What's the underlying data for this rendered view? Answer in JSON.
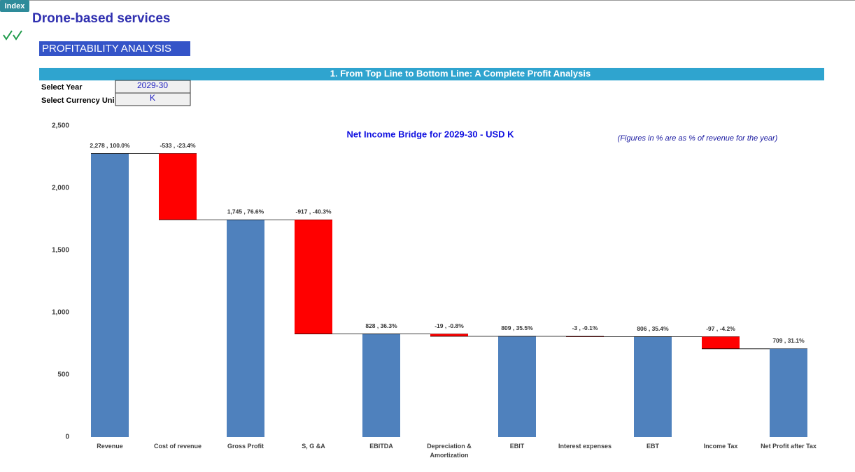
{
  "header": {
    "index_button": "Index",
    "title": "Drone-based services",
    "section": "PROFITABILITY ANALYSIS",
    "banner": "1. From Top Line to Bottom Line: A Complete Profit Analysis"
  },
  "inputs": {
    "rows": [
      {
        "label": "Select Year",
        "value": "2029-30"
      },
      {
        "label": "Select Currency Uni",
        "value": "K"
      }
    ]
  },
  "chart_data": {
    "type": "waterfall",
    "title": "Net Income Bridge for 2029-30 - USD K",
    "note": "(Figures in % are as % of revenue for the year)",
    "categories": [
      "Revenue",
      "Cost of revenue",
      "Gross Profit",
      "S, G &A",
      "EBITDA",
      "Depreciation & Amortization",
      "EBIT",
      "Interest expenses",
      "EBT",
      "Income Tax",
      "Net Profit after Tax"
    ],
    "values": [
      2278,
      -533,
      1745,
      -917,
      828,
      -19,
      809,
      -3,
      806,
      -97,
      709
    ],
    "value_labels": [
      "2,278 , 100.0%",
      "-533 , -23.4%",
      "1,745 , 76.6%",
      "-917 , -40.3%",
      "828 , 36.3%",
      "-19 , -0.8%",
      "809 , 35.5%",
      "-3 , -0.1%",
      "806 , 35.4%",
      "-97 , -4.2%",
      "709 , 31.1%"
    ],
    "color": "#4f81bd",
    "negative_color": "#ff0000",
    "ylim": [
      0,
      2500
    ],
    "yticks": [
      0,
      500,
      {
        "value": 1000,
        "label": "1,000"
      },
      {
        "value": 1500,
        "label": "1,500"
      },
      {
        "value": 2000,
        "label": "2,000"
      },
      {
        "value": 2500,
        "label": "2,500"
      }
    ],
    "grid": false
  }
}
